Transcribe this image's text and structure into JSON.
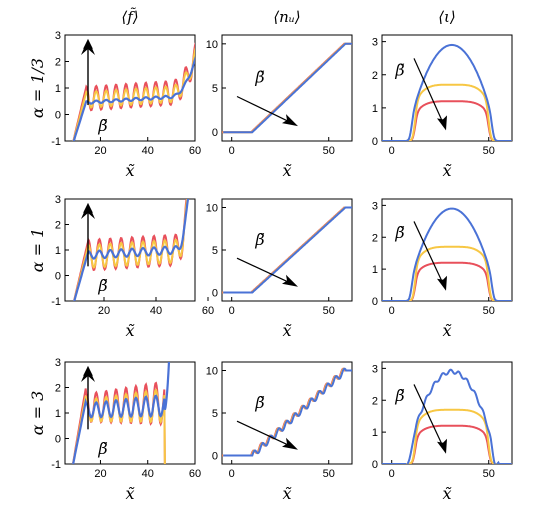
{
  "columns": [
    "⟨f̃⟩",
    "⟨nᵤ⟩",
    "⟨ι⟩"
  ],
  "rows": [
    "α = 1/3",
    "α = 1",
    "α = 3"
  ],
  "xlabel": "x̃",
  "arrow_label": "β̃",
  "series_colors": [
    "#e8505b",
    "#f7c744",
    "#4a72d6"
  ],
  "x_ticks": {
    "f": [
      "20",
      "40",
      "60"
    ],
    "n": [
      "0",
      "50"
    ],
    "i": [
      "0",
      "50"
    ]
  },
  "y_ticks": {
    "f": [
      "-1",
      "0",
      "1",
      "2",
      "3"
    ],
    "n": [
      "0",
      "5",
      "10"
    ],
    "i": [
      "0",
      "1",
      "2",
      "3"
    ]
  },
  "chart_data": [
    {
      "type": "line",
      "column": "f",
      "row": "α = 1/3",
      "xlim": [
        5,
        60
      ],
      "ylim": [
        -1,
        3
      ],
      "amplitudes": [
        0.45,
        0.3,
        0.05
      ],
      "means": [
        0.6,
        0.55,
        0.45
      ],
      "blowup": "right"
    },
    {
      "type": "line",
      "column": "n",
      "row": "α = 1/3",
      "xlim": [
        -5,
        62
      ],
      "ylim": [
        -1,
        11
      ],
      "steps": false,
      "plateau": 10
    },
    {
      "type": "line",
      "column": "i",
      "row": "α = 1/3",
      "xlim": [
        -5,
        62
      ],
      "ylim": [
        0,
        3.2
      ],
      "peaks": [
        1.2,
        1.7,
        2.9
      ]
    },
    {
      "type": "line",
      "column": "f",
      "row": "α = 1",
      "xlim": [
        5,
        55
      ],
      "ylim": [
        -1,
        3
      ],
      "amplitudes": [
        0.6,
        0.45,
        0.15
      ],
      "means": [
        0.8,
        0.75,
        0.8
      ],
      "blowup": "right"
    },
    {
      "type": "line",
      "column": "n",
      "row": "α = 1",
      "xlim": [
        -5,
        62
      ],
      "ylim": [
        -1,
        11
      ],
      "steps": false,
      "plateau": 10
    },
    {
      "type": "line",
      "column": "i",
      "row": "α = 1",
      "xlim": [
        -5,
        62
      ],
      "ylim": [
        0,
        3.2
      ],
      "peaks": [
        1.2,
        1.7,
        2.9
      ]
    },
    {
      "type": "line",
      "column": "f",
      "row": "α = 3",
      "xlim": [
        5,
        60
      ],
      "ylim": [
        -1,
        3
      ],
      "amplitudes": [
        0.9,
        0.7,
        0.45
      ],
      "means": [
        1.2,
        1.1,
        1.1
      ],
      "blowup": "right"
    },
    {
      "type": "line",
      "column": "n",
      "row": "α = 3",
      "xlim": [
        -5,
        62
      ],
      "ylim": [
        -1,
        11
      ],
      "steps": true,
      "plateau": 10
    },
    {
      "type": "line",
      "column": "i",
      "row": "α = 3",
      "xlim": [
        -5,
        62
      ],
      "ylim": [
        0,
        3.2
      ],
      "peaks": [
        1.2,
        1.7,
        2.9
      ]
    }
  ]
}
